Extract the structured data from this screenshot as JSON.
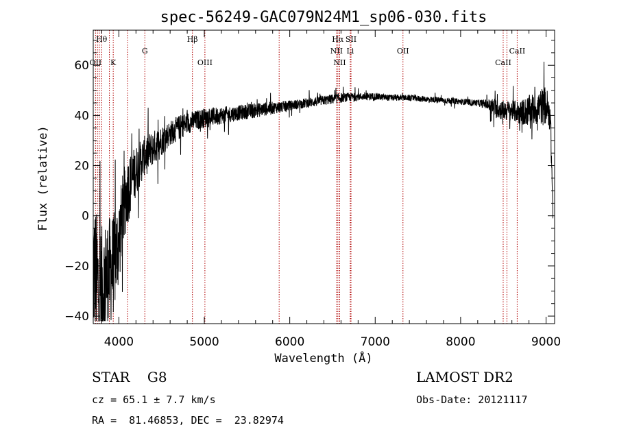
{
  "chart_data": {
    "type": "line",
    "title": "spec-56249-GAC079N24M1_sp06-030.fits",
    "xlabel": "Wavelength (Å)",
    "ylabel": "Flux (relative)",
    "xlim": [
      3700,
      9100
    ],
    "ylim": [
      -43,
      74
    ],
    "x_ticks": [
      4000,
      5000,
      6000,
      7000,
      8000,
      9000
    ],
    "y_ticks": [
      -40,
      -20,
      0,
      20,
      40,
      60
    ],
    "grid": false,
    "line_color": "#000000",
    "marker_color": "#b00000",
    "spectrum_envelope": {
      "x": [
        3700,
        3750,
        3800,
        3850,
        3900,
        3950,
        4000,
        4050,
        4100,
        4150,
        4200,
        4250,
        4300,
        4400,
        4500,
        4600,
        4700,
        4800,
        4900,
        5000,
        5200,
        5400,
        5600,
        5800,
        6000,
        6200,
        6400,
        6600,
        6800,
        7000,
        7200,
        7400,
        7600,
        7800,
        8000,
        8200,
        8300,
        8400,
        8500,
        8600,
        8700,
        8800,
        8900,
        9000,
        9050,
        9080
      ],
      "y": [
        -20,
        -28,
        -30,
        -25,
        -22,
        -18,
        -10,
        2,
        10,
        14,
        18,
        21,
        24,
        27,
        30,
        33,
        35,
        37,
        38,
        39,
        40,
        41,
        42,
        43,
        44,
        45,
        46,
        47,
        47.5,
        47.5,
        47,
        47,
        46.5,
        46,
        45.5,
        45,
        44.5,
        43,
        42,
        42,
        41,
        42,
        43,
        44,
        40,
        2
      ],
      "amp": [
        30,
        28,
        26,
        24,
        22,
        20,
        18,
        16,
        14,
        12,
        10,
        9,
        8,
        7,
        6,
        5,
        5,
        4.5,
        4,
        4,
        3.5,
        3,
        3,
        2.5,
        2,
        2,
        2,
        2,
        1.5,
        1.5,
        1.2,
        1.2,
        1.2,
        1.2,
        1.2,
        1.3,
        2,
        4,
        4,
        4,
        5,
        6,
        7,
        8,
        6,
        6
      ]
    },
    "spectral_lines": [
      {
        "label": "Hθ",
        "wave": 3798,
        "row": "top"
      },
      {
        "label": "OII",
        "wave": 3727,
        "row": "bottom"
      },
      {
        "label": "K",
        "wave": 3934,
        "row": "bottom"
      },
      {
        "label": "G",
        "wave": 4304,
        "row": "mid"
      },
      {
        "label": "Hβ",
        "wave": 4861,
        "row": "top"
      },
      {
        "label": "OIII",
        "wave": 5007,
        "row": "bottom"
      },
      {
        "label": "Hα",
        "wave": 6563,
        "row": "top"
      },
      {
        "label": "SII",
        "wave": 6717,
        "row": "top"
      },
      {
        "label": "NII",
        "wave": 6548,
        "row": "mid"
      },
      {
        "label": "Li",
        "wave": 6708,
        "row": "mid"
      },
      {
        "label": "NII",
        "wave": 6584,
        "row": "bottom"
      },
      {
        "label": "OII",
        "wave": 7325,
        "row": "mid"
      },
      {
        "label": "CaII",
        "wave": 8498,
        "row": "bottom"
      },
      {
        "label": "CaII",
        "wave": 8662,
        "row": "mid"
      }
    ],
    "extra_marker_waves": [
      3750,
      3771,
      3889,
      4102,
      5876,
      6583,
      8542
    ]
  },
  "info": {
    "object_type": "STAR    G8",
    "survey": "LAMOST DR2",
    "cz": "cz = 65.1 ± 7.7 km/s",
    "obs_date": "Obs-Date: 20121117",
    "coords": "RA =  81.46853, DEC =  23.82974"
  }
}
